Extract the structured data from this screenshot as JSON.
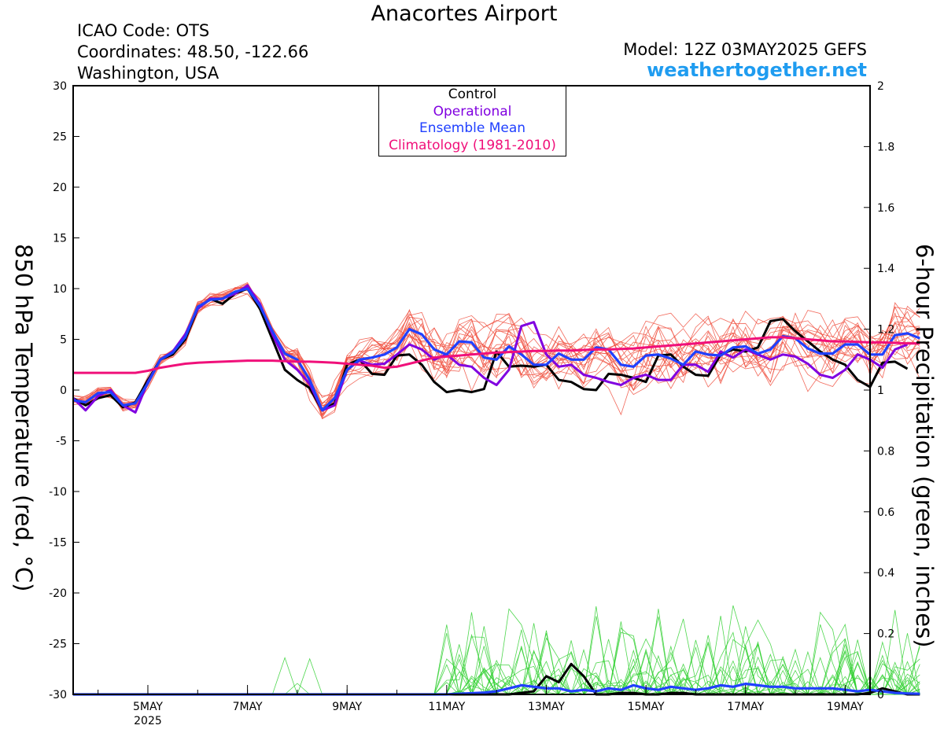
{
  "header": {
    "title": "Anacortes Airport",
    "icao": "ICAO Code: OTS",
    "coords": "Coordinates: 48.50, -122.66",
    "location": "Washington, USA",
    "model": "Model: 12Z 03MAY2025 GEFS",
    "site": "weathertogether.net"
  },
  "colors": {
    "control": "#000000",
    "operational": "#8000e0",
    "mean": "#2040ff",
    "climatology": "#f0107a",
    "members_temp": "#f05040",
    "members_precip": "#30d030",
    "site": "#1f9cf0"
  },
  "legend": [
    {
      "label": "Control",
      "color": "#000000"
    },
    {
      "label": "Operational",
      "color": "#8000e0"
    },
    {
      "label": "Ensemble Mean",
      "color": "#2040ff"
    },
    {
      "label": "Climatology (1981-2010)",
      "color": "#f0107a"
    }
  ],
  "chart_data": {
    "type": "line",
    "ylabel_left": "850 hPa Temperature (red, °C)",
    "ylabel_right": "6-hour Precipitation (green, inches)",
    "ylim_left": [
      -30,
      30
    ],
    "ylim_right": [
      0,
      2
    ],
    "yticks_left": [
      "30",
      "25",
      "20",
      "15",
      "10",
      "5",
      "0",
      "-5",
      "-10",
      "-15",
      "-20",
      "-25",
      "-30"
    ],
    "yticks_right": [
      "2",
      "1.8",
      "1.6",
      "1.4",
      "1.2",
      "1",
      "0.8",
      "0.6",
      "0.4",
      "0.2",
      "0"
    ],
    "xticks": [
      {
        "day": 5,
        "label": "5MAY",
        "sub": "2025"
      },
      {
        "day": 7,
        "label": "7MAY",
        "sub": ""
      },
      {
        "day": 9,
        "label": "9MAY",
        "sub": ""
      },
      {
        "day": 11,
        "label": "11MAY",
        "sub": ""
      },
      {
        "day": 13,
        "label": "13MAY",
        "sub": ""
      },
      {
        "day": 15,
        "label": "15MAY",
        "sub": ""
      },
      {
        "day": 17,
        "label": "17MAY",
        "sub": ""
      },
      {
        "day": 19,
        "label": "19MAY",
        "sub": ""
      }
    ],
    "x_start_day": 3.5,
    "x_step_days": 0.25,
    "series": [
      {
        "name": "Control",
        "axis": "temp",
        "values": [
          -0.8,
          -1.5,
          -0.8,
          -0.5,
          -1.7,
          -1.2,
          1,
          3,
          3.5,
          5,
          8,
          9,
          8.5,
          9.5,
          10,
          8,
          5,
          2,
          1,
          0.2,
          -2,
          -1.3,
          2.5,
          3,
          1.6,
          1.5,
          3.4,
          3.5,
          2.5,
          0.8,
          -0.2,
          0,
          -0.2,
          0.1,
          3.8,
          2.3,
          2.4,
          2.3,
          2.5,
          1,
          0.8,
          0.1,
          0,
          1.6,
          1.5,
          1.2,
          0.8,
          3.4,
          3.5,
          2.3,
          1.5,
          1.4,
          3.5,
          4,
          3.8,
          4.2,
          6.8,
          7,
          5.8,
          4.8,
          3.8,
          3,
          2.5,
          1,
          0.3,
          2.7,
          2.8,
          2.1
        ]
      },
      {
        "name": "Operational",
        "axis": "temp",
        "values": [
          -0.8,
          -2,
          -0.6,
          0,
          -1.5,
          -2.2,
          0.8,
          3,
          3.8,
          5.5,
          8,
          9,
          9,
          9.5,
          10.3,
          8.5,
          5.5,
          3,
          2,
          0.6,
          -2,
          -1.5,
          2,
          2.9,
          2.5,
          2.6,
          3.5,
          4.5,
          4,
          3,
          3.5,
          2.5,
          2.3,
          1.2,
          0.5,
          2,
          6.3,
          6.7,
          3.5,
          2.3,
          2.5,
          1.5,
          1.2,
          0.8,
          0.5,
          1.2,
          1.5,
          1,
          1,
          2.5,
          2.5,
          1.8,
          3.8,
          3.2,
          4,
          3.5,
          3,
          3.5,
          3.3,
          2.6,
          1.5,
          1.2,
          2,
          3.5,
          3,
          2.2,
          4,
          4.5
        ]
      },
      {
        "name": "Ensemble Mean",
        "axis": "temp",
        "values": [
          -1,
          -1.2,
          -0.3,
          -0.2,
          -1.5,
          -1.3,
          0.7,
          3,
          3.7,
          5.2,
          8.2,
          8.9,
          9,
          9.7,
          10,
          8.3,
          5.8,
          3.6,
          3,
          1,
          -2,
          -0.8,
          2,
          3,
          3.2,
          3.5,
          4.2,
          6,
          5.5,
          4,
          3.5,
          4.8,
          4.7,
          3.2,
          3,
          4.3,
          3.5,
          2.5,
          2.5,
          3.6,
          3,
          3,
          4.2,
          4,
          2.5,
          2.3,
          3.4,
          3.5,
          3.1,
          2.5,
          3.8,
          3.5,
          3.4,
          4.2,
          4.3,
          3.6,
          4,
          5.3,
          5.1,
          4.1,
          3.6,
          3.6,
          4.5,
          4.5,
          3.5,
          3.5,
          5.4,
          5.6,
          5.1
        ]
      },
      {
        "name": "Climatology (1981-2010)",
        "axis": "temp",
        "values": [
          1.7,
          1.7,
          1.7,
          1.7,
          1.7,
          1.7,
          1.9,
          2.2,
          2.4,
          2.6,
          2.7,
          2.75,
          2.8,
          2.85,
          2.9,
          2.9,
          2.9,
          2.85,
          2.8,
          2.8,
          2.75,
          2.7,
          2.6,
          2.5,
          2.4,
          2.2,
          2.3,
          2.6,
          2.9,
          3.2,
          3.3,
          3.4,
          3.5,
          3.6,
          3.7,
          3.75,
          3.8,
          3.85,
          3.85,
          3.9,
          3.9,
          3.95,
          4,
          4,
          4.05,
          4.1,
          4.2,
          4.3,
          4.4,
          4.5,
          4.6,
          4.7,
          4.8,
          4.9,
          5,
          5.1,
          5.2,
          5.2,
          5.1,
          5,
          4.9,
          4.8,
          4.8,
          4.75,
          4.7,
          4.7,
          4.65,
          4.6,
          4.6
        ]
      },
      {
        "name": "Control",
        "axis": "precip",
        "values": [
          0,
          0,
          0,
          0,
          0,
          0,
          0,
          0,
          0,
          0,
          0,
          0,
          0,
          0,
          0,
          0,
          0,
          0,
          0,
          0,
          0,
          0,
          0,
          0,
          0,
          0,
          0,
          0,
          0,
          0,
          0,
          0,
          0,
          0,
          0,
          0,
          0.005,
          0.01,
          0.06,
          0.04,
          0.1,
          0.06,
          0,
          0,
          0.005,
          0.005,
          0,
          0,
          0.005,
          0.005,
          0,
          0,
          0,
          0,
          0,
          0,
          0,
          0,
          0,
          0,
          0,
          0,
          0,
          0,
          0.005,
          0.02,
          0.01,
          0,
          0
        ]
      },
      {
        "name": "Ensemble Mean",
        "axis": "precip",
        "values": [
          0,
          0,
          0,
          0,
          0,
          0,
          0,
          0,
          0,
          0,
          0,
          0,
          0,
          0,
          0,
          0,
          0,
          0,
          0,
          0,
          0,
          0,
          0,
          0,
          0,
          0,
          0,
          0,
          0,
          0,
          0,
          0.002,
          0.004,
          0.006,
          0.01,
          0.02,
          0.03,
          0.025,
          0.02,
          0.02,
          0.01,
          0.015,
          0.01,
          0.02,
          0.015,
          0.03,
          0.02,
          0.015,
          0.025,
          0.02,
          0.015,
          0.02,
          0.03,
          0.025,
          0.035,
          0.03,
          0.025,
          0.025,
          0.02,
          0.02,
          0.02,
          0.02,
          0.015,
          0.01,
          0.015,
          0.01,
          0.005,
          0.003,
          0.002
        ]
      }
    ]
  }
}
